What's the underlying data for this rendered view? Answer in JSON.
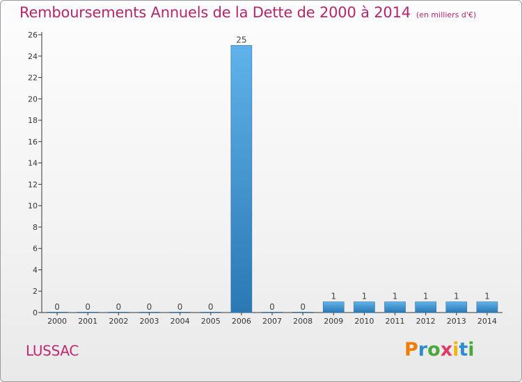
{
  "title": {
    "main": "Remboursements Annuels de la Dette de 2000 à 2014",
    "unit": "(en milliers d'€)"
  },
  "commune": "LUSSAC",
  "logo": {
    "text": "Proxiti",
    "letter_colors": [
      "#f07d00",
      "#2e8bcf",
      "#4aa83a",
      "#e03a6a",
      "#f2b400",
      "#2e8bcf",
      "#4aa83a"
    ]
  },
  "colors": {
    "title": "#b5256b",
    "bar_top": "#5fb2ea",
    "bar_bottom": "#2b78b4",
    "axis": "#333333",
    "grid": "#d8d8d8"
  },
  "chart_data": {
    "type": "bar",
    "categories": [
      "2000",
      "2001",
      "2002",
      "2003",
      "2004",
      "2005",
      "2006",
      "2007",
      "2008",
      "2009",
      "2010",
      "2011",
      "2012",
      "2013",
      "2014"
    ],
    "values": [
      0,
      0,
      0,
      0,
      0,
      0,
      25,
      0,
      0,
      1,
      1,
      1,
      1,
      1,
      1
    ],
    "data_labels": [
      "0",
      "0",
      "0",
      "0",
      "0",
      "0",
      "25",
      "0",
      "0",
      "1",
      "1",
      "1",
      "1",
      "1",
      "1"
    ],
    "yticks": [
      0,
      2,
      4,
      6,
      8,
      10,
      12,
      14,
      16,
      18,
      20,
      22,
      24,
      26
    ],
    "ylim": [
      0,
      26
    ],
    "grid": false,
    "legend": "none"
  }
}
